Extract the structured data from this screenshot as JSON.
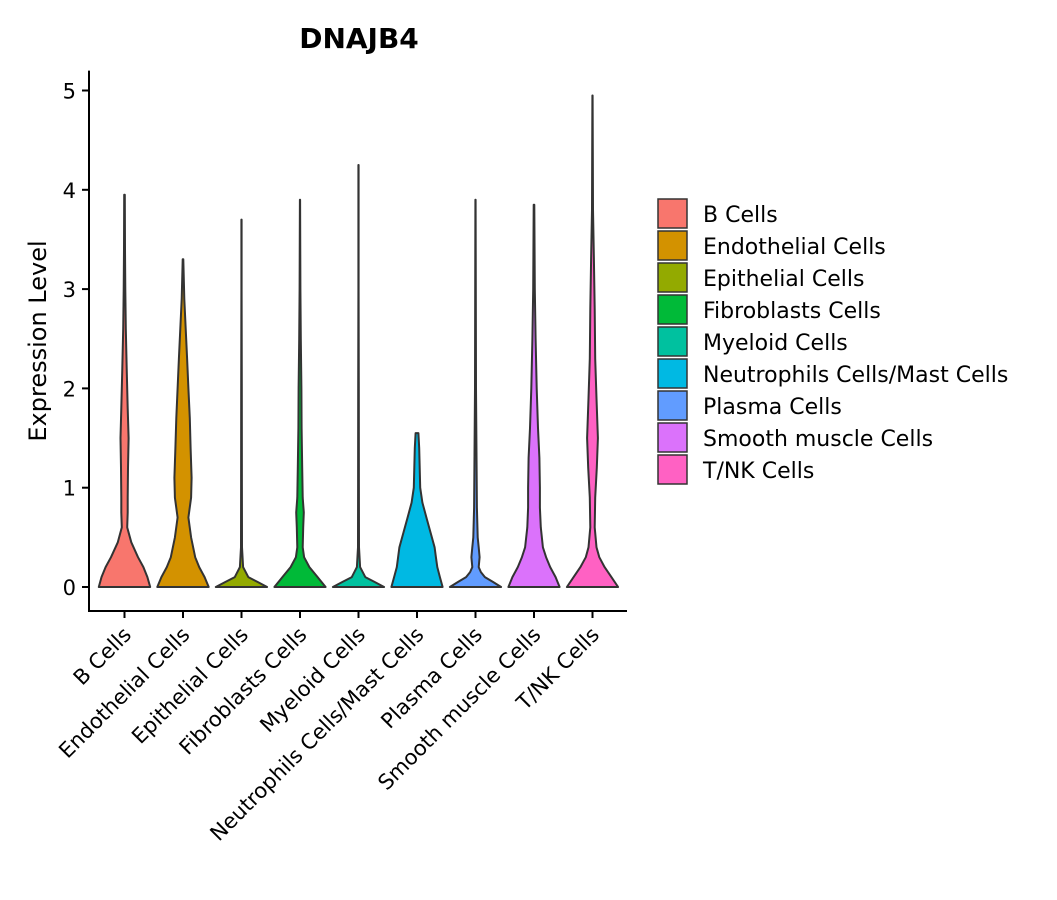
{
  "chart_data": {
    "type": "violin",
    "title": "DNAJB4",
    "xlabel": "",
    "ylabel": "Expression Level",
    "ylim": [
      -0.25,
      5.2
    ],
    "yticks": [
      0,
      1,
      2,
      3,
      4,
      5
    ],
    "legend_position": "right",
    "categories": [
      "B Cells",
      "Endothelial Cells",
      "Epithelial Cells",
      "Fibroblasts Cells",
      "Myeloid Cells",
      "Neutrophils Cells/Mast Cells",
      "Plasma Cells",
      "Smooth muscle Cells",
      "T/NK Cells"
    ],
    "colors": [
      "#F8766D",
      "#D39200",
      "#93AA00",
      "#00BA38",
      "#00C19F",
      "#00B9E3",
      "#619CFF",
      "#DB72FB",
      "#FF61C3"
    ],
    "series": [
      {
        "name": "B Cells",
        "max": 3.95,
        "profile": [
          [
            0,
            0.95
          ],
          [
            0.1,
            0.85
          ],
          [
            0.2,
            0.7
          ],
          [
            0.3,
            0.5
          ],
          [
            0.45,
            0.25
          ],
          [
            0.6,
            0.1
          ],
          [
            0.75,
            0.12
          ],
          [
            0.9,
            0.12
          ],
          [
            1.2,
            0.13
          ],
          [
            1.5,
            0.15
          ],
          [
            1.8,
            0.12
          ],
          [
            2.2,
            0.08
          ],
          [
            2.6,
            0.05
          ],
          [
            3.0,
            0.03
          ],
          [
            3.4,
            0.02
          ],
          [
            3.95,
            0.01
          ]
        ]
      },
      {
        "name": "Endothelial Cells",
        "max": 3.3,
        "profile": [
          [
            0,
            0.95
          ],
          [
            0.1,
            0.8
          ],
          [
            0.2,
            0.6
          ],
          [
            0.3,
            0.45
          ],
          [
            0.5,
            0.3
          ],
          [
            0.7,
            0.2
          ],
          [
            0.9,
            0.3
          ],
          [
            1.1,
            0.32
          ],
          [
            1.4,
            0.28
          ],
          [
            1.7,
            0.25
          ],
          [
            2.0,
            0.2
          ],
          [
            2.3,
            0.15
          ],
          [
            2.6,
            0.1
          ],
          [
            2.9,
            0.05
          ],
          [
            3.3,
            0.01
          ]
        ]
      },
      {
        "name": "Epithelial Cells",
        "max": 3.7,
        "profile": [
          [
            0,
            0.95
          ],
          [
            0.05,
            0.6
          ],
          [
            0.1,
            0.25
          ],
          [
            0.2,
            0.06
          ],
          [
            0.4,
            0.02
          ],
          [
            1.0,
            0.015
          ],
          [
            2.0,
            0.01
          ],
          [
            3.0,
            0.005
          ],
          [
            3.7,
            0.005
          ]
        ]
      },
      {
        "name": "Fibroblasts Cells",
        "max": 3.9,
        "profile": [
          [
            0,
            0.95
          ],
          [
            0.1,
            0.65
          ],
          [
            0.2,
            0.35
          ],
          [
            0.3,
            0.15
          ],
          [
            0.4,
            0.1
          ],
          [
            0.6,
            0.12
          ],
          [
            0.75,
            0.14
          ],
          [
            0.9,
            0.1
          ],
          [
            1.2,
            0.08
          ],
          [
            1.6,
            0.06
          ],
          [
            2.0,
            0.05
          ],
          [
            2.5,
            0.03
          ],
          [
            3.0,
            0.015
          ],
          [
            3.9,
            0.005
          ]
        ]
      },
      {
        "name": "Myeloid Cells",
        "max": 4.25,
        "profile": [
          [
            0,
            0.95
          ],
          [
            0.05,
            0.6
          ],
          [
            0.1,
            0.25
          ],
          [
            0.2,
            0.06
          ],
          [
            0.4,
            0.02
          ],
          [
            1.0,
            0.015
          ],
          [
            2.0,
            0.01
          ],
          [
            3.0,
            0.005
          ],
          [
            4.25,
            0.005
          ]
        ]
      },
      {
        "name": "Neutrophils Cells/Mast Cells",
        "max": 1.55,
        "profile": [
          [
            0,
            0.95
          ],
          [
            0.1,
            0.85
          ],
          [
            0.2,
            0.75
          ],
          [
            0.3,
            0.7
          ],
          [
            0.4,
            0.65
          ],
          [
            0.55,
            0.5
          ],
          [
            0.7,
            0.35
          ],
          [
            0.85,
            0.2
          ],
          [
            1.0,
            0.12
          ],
          [
            1.2,
            0.1
          ],
          [
            1.4,
            0.08
          ],
          [
            1.55,
            0.05
          ]
        ]
      },
      {
        "name": "Plasma Cells",
        "max": 3.9,
        "profile": [
          [
            0,
            0.95
          ],
          [
            0.05,
            0.65
          ],
          [
            0.1,
            0.35
          ],
          [
            0.15,
            0.2
          ],
          [
            0.2,
            0.12
          ],
          [
            0.3,
            0.15
          ],
          [
            0.4,
            0.12
          ],
          [
            0.5,
            0.08
          ],
          [
            0.8,
            0.05
          ],
          [
            1.2,
            0.04
          ],
          [
            2.0,
            0.02
          ],
          [
            3.0,
            0.01
          ],
          [
            3.9,
            0.005
          ]
        ]
      },
      {
        "name": "Smooth muscle Cells",
        "max": 3.85,
        "profile": [
          [
            0,
            0.95
          ],
          [
            0.1,
            0.8
          ],
          [
            0.2,
            0.6
          ],
          [
            0.3,
            0.45
          ],
          [
            0.4,
            0.33
          ],
          [
            0.6,
            0.25
          ],
          [
            0.8,
            0.22
          ],
          [
            1.0,
            0.22
          ],
          [
            1.3,
            0.2
          ],
          [
            1.6,
            0.15
          ],
          [
            2.0,
            0.1
          ],
          [
            2.5,
            0.06
          ],
          [
            3.0,
            0.03
          ],
          [
            3.85,
            0.01
          ]
        ]
      },
      {
        "name": "T/NK Cells",
        "max": 4.95,
        "profile": [
          [
            0,
            0.95
          ],
          [
            0.1,
            0.7
          ],
          [
            0.2,
            0.45
          ],
          [
            0.3,
            0.25
          ],
          [
            0.4,
            0.15
          ],
          [
            0.6,
            0.08
          ],
          [
            0.9,
            0.1
          ],
          [
            1.2,
            0.16
          ],
          [
            1.5,
            0.2
          ],
          [
            1.9,
            0.15
          ],
          [
            2.3,
            0.1
          ],
          [
            2.8,
            0.08
          ],
          [
            3.3,
            0.05
          ],
          [
            3.8,
            0.02
          ],
          [
            4.4,
            0.01
          ],
          [
            4.95,
            0.005
          ]
        ]
      }
    ]
  }
}
